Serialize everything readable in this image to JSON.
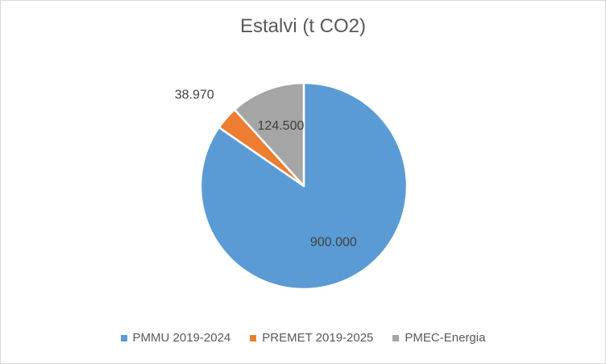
{
  "chart_data": {
    "type": "pie",
    "title": "Estalvi (t CO2)",
    "categories": [
      "PMMU 2019-2024",
      "PREMET 2019-2025",
      "PMEC-Energia"
    ],
    "values": [
      900000,
      38970,
      124500
    ],
    "data_labels": [
      "900.000",
      "38.970",
      "124.500"
    ],
    "colors": [
      "#5b9bd5",
      "#ed7d31",
      "#a5a5a5"
    ],
    "legend_position": "bottom"
  }
}
